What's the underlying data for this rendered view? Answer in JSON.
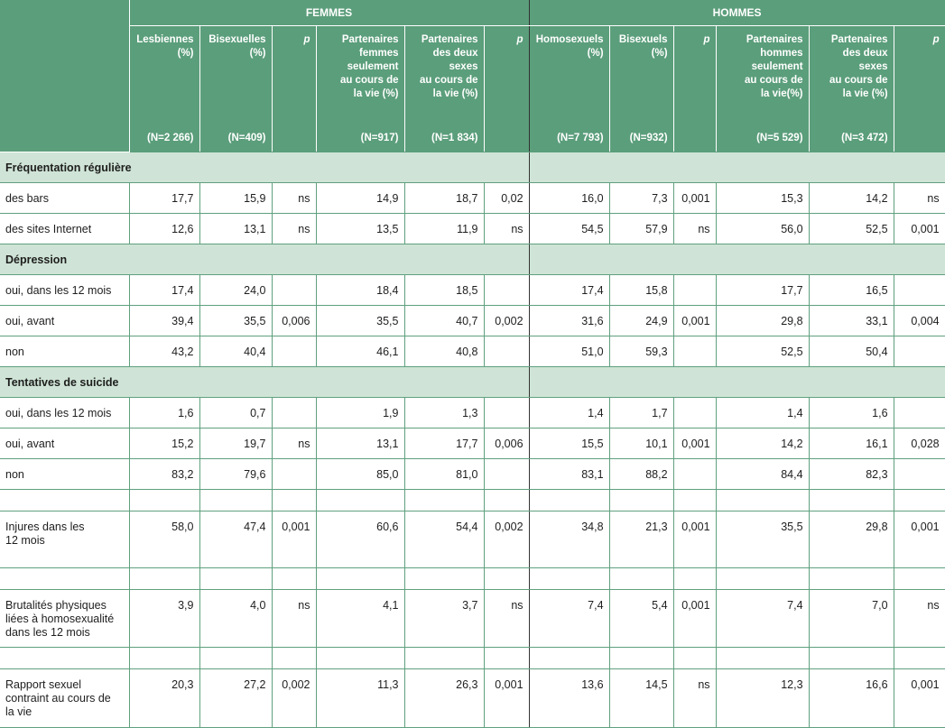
{
  "header": {
    "femmes": "FEMMES",
    "hommes": "HOMMES",
    "columns": [
      {
        "label": "Lesbiennes\n(%)",
        "n": "(N=2 266)"
      },
      {
        "label": "Bisexuelles\n(%)",
        "n": "(N=409)"
      },
      {
        "label": "p",
        "n": ""
      },
      {
        "label": "Partenaires\nfemmes\nseulement\nau cours de\nla vie (%)",
        "n": "(N=917)"
      },
      {
        "label": "Partenaires\ndes deux\nsexes\nau cours de\nla vie (%)",
        "n": "(N=1 834)"
      },
      {
        "label": "p",
        "n": ""
      },
      {
        "label": "Homosexuels\n(%)",
        "n": "(N=7 793)"
      },
      {
        "label": "Bisexuels\n(%)",
        "n": "(N=932)"
      },
      {
        "label": "p",
        "n": ""
      },
      {
        "label": "Partenaires\nhommes\nseulement\nau cours de\nla vie(%)",
        "n": "(N=5 529)"
      },
      {
        "label": "Partenaires\ndes deux\nsexes\nau cours de\nla vie (%)",
        "n": "(N=3 472)"
      },
      {
        "label": "p",
        "n": ""
      }
    ]
  },
  "sections": [
    {
      "title": "Fréquentation régulière",
      "rows": [
        {
          "label": "des bars",
          "values": [
            "17,7",
            "15,9",
            "ns",
            "14,9",
            "18,7",
            "0,02",
            "16,0",
            "7,3",
            "0,001",
            "15,3",
            "14,2",
            "ns"
          ]
        },
        {
          "label": "des sites Internet",
          "values": [
            "12,6",
            "13,1",
            "ns",
            "13,5",
            "11,9",
            "ns",
            "54,5",
            "57,9",
            "ns",
            "56,0",
            "52,5",
            "0,001"
          ]
        }
      ]
    },
    {
      "title": "Dépression",
      "rows": [
        {
          "label": "oui, dans les 12 mois",
          "values": [
            "17,4",
            "24,0",
            "",
            "18,4",
            "18,5",
            "",
            "17,4",
            "15,8",
            "",
            "17,7",
            "16,5",
            ""
          ]
        },
        {
          "label": "oui, avant",
          "values": [
            "39,4",
            "35,5",
            "0,006",
            "35,5",
            "40,7",
            "0,002",
            "31,6",
            "24,9",
            "0,001",
            "29,8",
            "33,1",
            "0,004"
          ]
        },
        {
          "label": "non",
          "values": [
            "43,2",
            "40,4",
            "",
            "46,1",
            "40,8",
            "",
            "51,0",
            "59,3",
            "",
            "52,5",
            "50,4",
            ""
          ]
        }
      ]
    },
    {
      "title": "Tentatives de suicide",
      "rows": [
        {
          "label": "oui, dans les 12 mois",
          "values": [
            "1,6",
            "0,7",
            "",
            "1,9",
            "1,3",
            "",
            "1,4",
            "1,7",
            "",
            "1,4",
            "1,6",
            ""
          ]
        },
        {
          "label": "oui, avant",
          "values": [
            "15,2",
            "19,7",
            "ns",
            "13,1",
            "17,7",
            "0,006",
            "15,5",
            "10,1",
            "0,001",
            "14,2",
            "16,1",
            "0,028"
          ]
        },
        {
          "label": "non",
          "values": [
            "83,2",
            "79,6",
            "",
            "85,0",
            "81,0",
            "",
            "83,1",
            "88,2",
            "",
            "84,4",
            "82,3",
            ""
          ]
        }
      ]
    }
  ],
  "extra_rows": [
    {
      "label": "Injures dans les\n12 mois",
      "values": [
        "58,0",
        "47,4",
        "0,001",
        "60,6",
        "54,4",
        "0,002",
        "34,8",
        "21,3",
        "0,001",
        "35,5",
        "29,8",
        "0,001"
      ]
    },
    {
      "label": "Brutalités physiques\nliées à homosexualité\ndans les 12 mois",
      "values": [
        "3,9",
        "4,0",
        "ns",
        "4,1",
        "3,7",
        "ns",
        "7,4",
        "5,4",
        "0,001",
        "7,4",
        "7,0",
        "ns"
      ]
    },
    {
      "label": "Rapport sexuel\ncontraint au cours de\nla vie",
      "values": [
        "20,3",
        "27,2",
        "0,002",
        "11,3",
        "26,3",
        "0,001",
        "13,6",
        "14,5",
        "ns",
        "12,3",
        "16,6",
        "0,001"
      ]
    }
  ]
}
